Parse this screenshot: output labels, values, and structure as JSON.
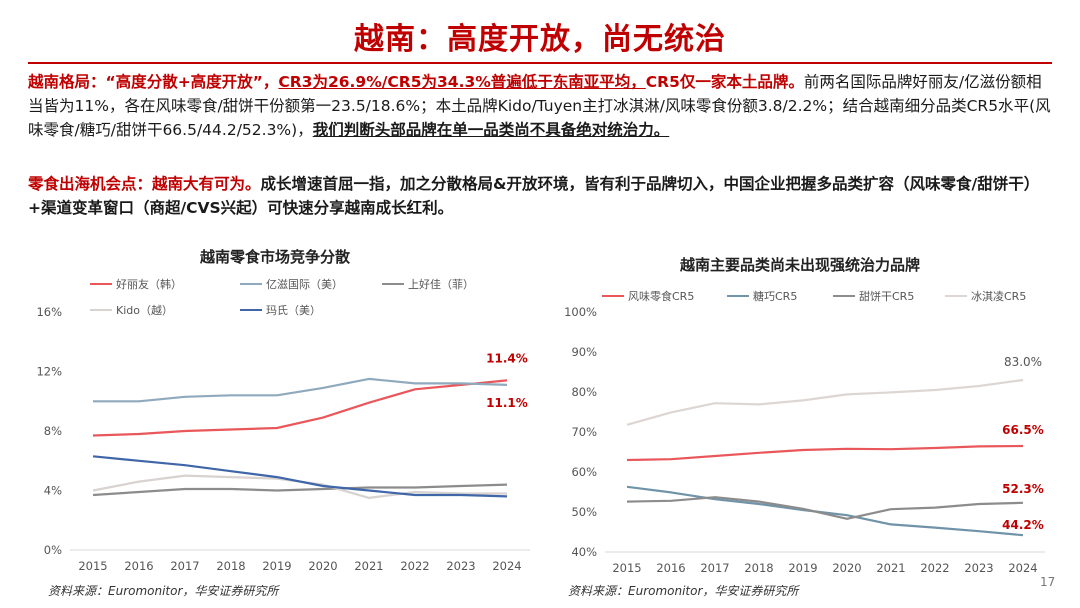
{
  "page": {
    "title": "越南：高度开放，尚无统治",
    "para1": {
      "s1": "越南格局：“高度分散+高度开放”，",
      "s2": "CR3为26.9%/CR5为34.3%普遍低于东南亚平均，",
      "s3": "CR5仅一家本土品牌。",
      "s4": "前两名国际品牌好丽友/亿滋份额相当皆为11%，各在风味零食/甜饼干份额第一23.5/18.6%；本土品牌Kido/Tuyen主打冰淇淋/风味零食份额3.8/2.2%；结合越南细分品类CR5水平(风味零食/糖巧/甜饼干66.5/44.2/52.3%)，",
      "s5": "我们判断头部品牌在单一品类尚不具备绝对统治力。"
    },
    "para2": {
      "s1": "零食出海机会点：越南大有可为。",
      "s2": "成长增速首屈一指，加之分散格局&开放环境，皆有利于品牌切入，中国企业把握多品类扩容（风味零食/甜饼干）+渠道变革窗口（商超/CVS兴起）可快速分享越南成长红利。"
    },
    "source_left": "资料来源：Euromonitor，华安证券研究所",
    "source_right": "资料来源：Euromonitor，华安证券研究所",
    "page_number": "17"
  },
  "colors": {
    "accent": "#c00000",
    "orion": "#e9575b",
    "mondelez": "#8fa9bd",
    "liwayway": "#8c8c8c",
    "kido": "#d8d2d0",
    "mars": "#3f66a8",
    "savory": "#e9575b",
    "choco": "#6f93a8",
    "biscuit": "#8c8c8c",
    "icecream": "#ddd6d3"
  },
  "chart_data": [
    {
      "type": "line",
      "title": "越南零食市场竞争分散",
      "x": [
        "2015",
        "2016",
        "2017",
        "2018",
        "2019",
        "2020",
        "2021",
        "2022",
        "2023",
        "2024"
      ],
      "yticks": [
        "0%",
        "4%",
        "8%",
        "12%",
        "16%"
      ],
      "ylim": [
        0,
        16
      ],
      "series": [
        {
          "name": "好丽友（韩）",
          "color": "#e9575b",
          "values": [
            7.7,
            7.8,
            8.0,
            8.1,
            8.2,
            8.9,
            9.9,
            10.8,
            11.1,
            11.4
          ]
        },
        {
          "name": "亿滋国际（美）",
          "color": "#8fa9bd",
          "values": [
            10.0,
            10.0,
            10.3,
            10.4,
            10.4,
            10.9,
            11.5,
            11.2,
            11.2,
            11.1
          ]
        },
        {
          "name": "上好佳（菲）",
          "color": "#8c8c8c",
          "values": [
            3.7,
            3.9,
            4.1,
            4.1,
            4.0,
            4.1,
            4.2,
            4.2,
            4.3,
            4.4
          ]
        },
        {
          "name": "Kido（越）",
          "color": "#d8d2d0",
          "values": [
            4.0,
            4.6,
            5.0,
            4.9,
            4.8,
            4.4,
            3.5,
            3.9,
            3.8,
            3.8
          ]
        },
        {
          "name": "玛氏（美）",
          "color": "#3f66a8",
          "values": [
            6.3,
            6.0,
            5.7,
            5.3,
            4.9,
            4.3,
            4.0,
            3.7,
            3.7,
            3.6
          ]
        }
      ],
      "end_labels": [
        {
          "text": "11.4%",
          "series": 0
        },
        {
          "text": "11.1%",
          "series": 1
        }
      ],
      "grid": false,
      "legend": "top"
    },
    {
      "type": "line",
      "title": "越南主要品类尚未出现强统治力品牌",
      "x": [
        "2015",
        "2016",
        "2017",
        "2018",
        "2019",
        "2020",
        "2021",
        "2022",
        "2023",
        "2024"
      ],
      "yticks": [
        "40%",
        "50%",
        "60%",
        "70%",
        "80%",
        "90%",
        "100%"
      ],
      "ylim": [
        40,
        100
      ],
      "series": [
        {
          "name": "风味零食CR5",
          "color": "#e9575b",
          "values": [
            63.0,
            63.2,
            64.0,
            64.8,
            65.5,
            65.8,
            65.7,
            66.0,
            66.4,
            66.5
          ]
        },
        {
          "name": "糖巧CR5",
          "color": "#6f93a8",
          "values": [
            56.3,
            54.9,
            53.2,
            52.0,
            50.5,
            49.2,
            46.9,
            46.1,
            45.2,
            44.2
          ]
        },
        {
          "name": "甜饼干CR5",
          "color": "#8c8c8c",
          "values": [
            52.6,
            52.8,
            53.7,
            52.6,
            50.8,
            48.3,
            50.7,
            51.1,
            52.0,
            52.3
          ]
        },
        {
          "name": "冰淇凌CR5",
          "color": "#ddd6d3",
          "values": [
            71.8,
            74.9,
            77.2,
            76.9,
            77.9,
            79.4,
            79.9,
            80.5,
            81.5,
            83.0
          ]
        }
      ],
      "end_labels": [
        {
          "text": "83.0%",
          "series": 3
        },
        {
          "text": "66.5%",
          "series": 0
        },
        {
          "text": "52.3%",
          "series": 2
        },
        {
          "text": "44.2%",
          "series": 1
        }
      ],
      "grid": false,
      "legend": "top"
    }
  ]
}
